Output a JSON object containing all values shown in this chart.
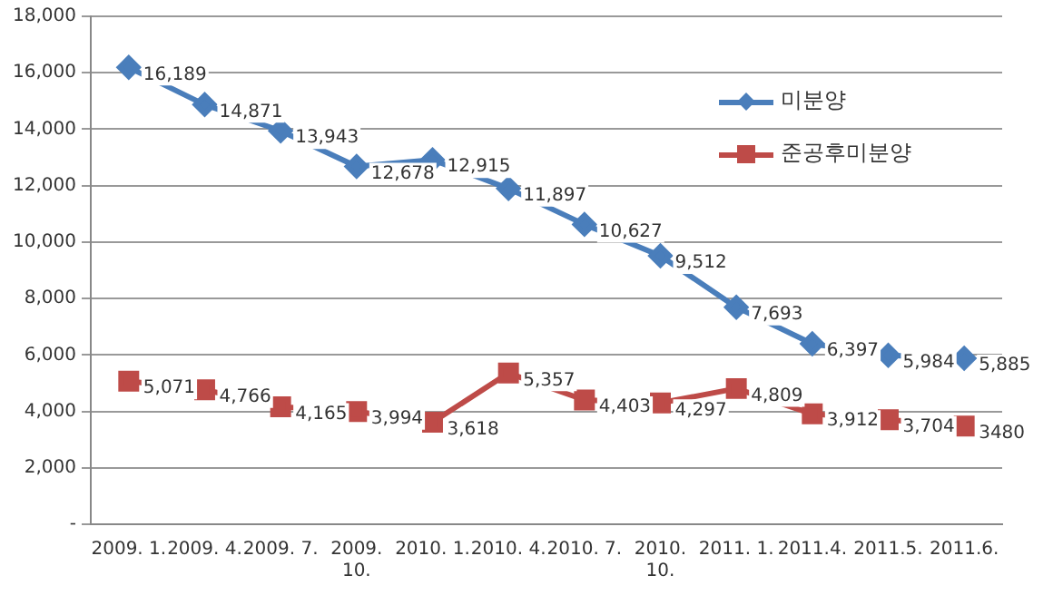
{
  "chart_data": {
    "type": "line",
    "categories": [
      "2009. 1.",
      "2009. 4.",
      "2009. 7.",
      "2009.\n10.",
      "2010. 1.",
      "2010. 4.",
      "2010. 7.",
      "2010.\n10.",
      "2011. 1.",
      "2011.4.",
      "2011.5.",
      "2011.6."
    ],
    "series": [
      {
        "name": "미분양",
        "color": "#4a7ebb",
        "marker": "diamond",
        "values": [
          16189,
          14871,
          13943,
          12678,
          12915,
          11897,
          10627,
          9512,
          7693,
          6397,
          5984,
          5885
        ],
        "value_labels": [
          "16,189",
          "14,871",
          "13,943",
          "12,678",
          "12,915",
          "11,897",
          "10,627",
          "9,512",
          "7,693",
          "6,397",
          "5,984",
          "5,885"
        ]
      },
      {
        "name": "준공후미분양",
        "color": "#be4b48",
        "marker": "square",
        "values": [
          5071,
          4766,
          4165,
          3994,
          3618,
          5357,
          4403,
          4297,
          4809,
          3912,
          3704,
          3480
        ],
        "value_labels": [
          "5,071",
          "4,766",
          "4,165",
          "3,994",
          "3,618",
          "5,357",
          "4,403",
          "4,297",
          "4,809",
          "3,912",
          "3,704",
          "3480"
        ]
      }
    ],
    "ylim": [
      0,
      18000
    ],
    "yticks": [
      {
        "value": 0,
        "label": "-"
      },
      {
        "value": 2000,
        "label": "2,000"
      },
      {
        "value": 4000,
        "label": "4,000"
      },
      {
        "value": 6000,
        "label": "6,000"
      },
      {
        "value": 8000,
        "label": "8,000"
      },
      {
        "value": 10000,
        "label": "10,000"
      },
      {
        "value": 12000,
        "label": "12,000"
      },
      {
        "value": 14000,
        "label": "14,000"
      },
      {
        "value": 16000,
        "label": "16,000"
      },
      {
        "value": 18000,
        "label": "18,000"
      }
    ],
    "grid": "y",
    "legend": "top right",
    "line_style": "solid"
  }
}
